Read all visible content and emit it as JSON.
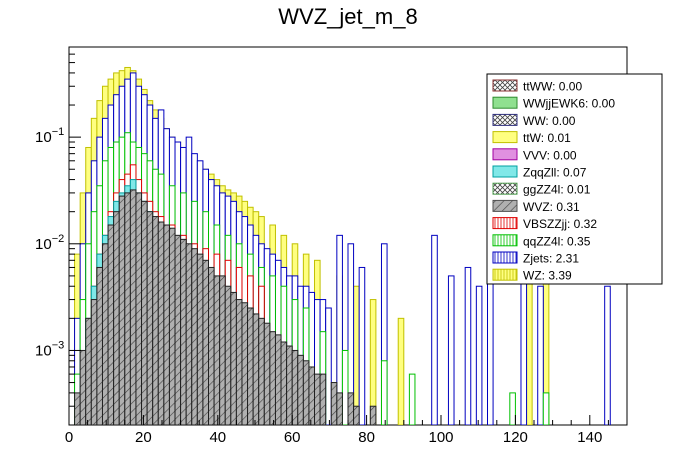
{
  "chart_data": {
    "type": "bar",
    "subtype": "stacked-histogram-log",
    "title": "WVZ_jet_m_8",
    "xlabel": "",
    "ylabel": "",
    "xlim": [
      0,
      150
    ],
    "ylim": [
      0.0002,
      0.7
    ],
    "yscale": "log",
    "bin_width": 1.5,
    "x_ticks": [
      0,
      20,
      40,
      60,
      80,
      100,
      120,
      140
    ],
    "x_tick_labels": [
      "0",
      "20",
      "40",
      "60",
      "80",
      "100",
      "120",
      "140"
    ],
    "y_ticks": [
      0.001,
      0.01,
      0.1
    ],
    "y_tick_labels": [
      {
        "base": "10",
        "exp": "−3"
      },
      {
        "base": "10",
        "exp": "−2"
      },
      {
        "base": "10",
        "exp": "−1"
      }
    ],
    "legend_position": "top-right",
    "legend": [
      {
        "label": "ttWW: 0.00",
        "fill": "#c98b8b",
        "stroke": "#8b3030",
        "pattern": "cross"
      },
      {
        "label": "WWjjEWK6: 0.00",
        "fill": "#90e090",
        "stroke": "#2e8b2e",
        "pattern": "solid"
      },
      {
        "label": "WW: 0.00",
        "fill": "#8080c0",
        "stroke": "#303080",
        "pattern": "cross"
      },
      {
        "label": "ttW: 0.01",
        "fill": "#ffff80",
        "stroke": "#c0c000",
        "pattern": "solid"
      },
      {
        "label": "VVV: 0.00",
        "fill": "#e090e0",
        "stroke": "#a000a0",
        "pattern": "solid"
      },
      {
        "label": "ZqqZll: 0.07",
        "fill": "#80e8e8",
        "stroke": "#00a0a0",
        "pattern": "solid"
      },
      {
        "label": "ggZZ4l: 0.01",
        "fill": "#b8e8a8",
        "stroke": "#50a050",
        "pattern": "cross"
      },
      {
        "label": "WVZ: 0.31",
        "fill": "#b0b0b0",
        "stroke": "#505050",
        "pattern": "diag"
      },
      {
        "label": "VBSZZjj: 0.32",
        "fill": "#ffffff",
        "stroke": "#e00000",
        "pattern": "vert"
      },
      {
        "label": "qqZZ4l: 0.35",
        "fill": "#ffffff",
        "stroke": "#00c000",
        "pattern": "vert"
      },
      {
        "label": "Zjets: 2.31",
        "fill": "#ffffff",
        "stroke": "#0000c0",
        "pattern": "vert"
      },
      {
        "label": "WZ: 3.39",
        "fill": "#ffff80",
        "stroke": "#c0c000",
        "pattern": "vert"
      }
    ],
    "series": [
      {
        "name": "WVZ",
        "fill": "#b0b0b0",
        "stroke": "#202020",
        "pattern": "diag",
        "x": [
          1.5,
          3,
          4.5,
          6,
          7.5,
          9,
          10.5,
          12,
          13.5,
          15,
          16.5,
          18,
          19.5,
          21,
          22.5,
          24,
          25.5,
          27,
          28.5,
          30,
          31.5,
          33,
          34.5,
          36,
          37.5,
          39,
          40.5,
          42,
          43.5,
          45,
          46.5,
          48,
          49.5,
          51,
          52.5,
          54,
          55.5,
          57,
          58.5,
          60,
          61.5,
          63,
          64.5,
          66,
          67.5,
          70.5,
          72,
          75,
          76.5,
          81
        ],
        "values": [
          0.0004,
          0.001,
          0.002,
          0.003,
          0.006,
          0.01,
          0.015,
          0.02,
          0.028,
          0.03,
          0.032,
          0.03,
          0.025,
          0.02,
          0.018,
          0.016,
          0.015,
          0.014,
          0.012,
          0.011,
          0.01,
          0.009,
          0.008,
          0.007,
          0.006,
          0.005,
          0.005,
          0.004,
          0.0035,
          0.003,
          0.0028,
          0.0025,
          0.0022,
          0.002,
          0.0018,
          0.0015,
          0.0014,
          0.0012,
          0.0011,
          0.001,
          0.0009,
          0.0008,
          0.0007,
          0.0006,
          0.0006,
          0.0005,
          0.0004,
          0.0004,
          0.0003,
          0.0003
        ]
      },
      {
        "name": "ZqqZll",
        "fill": "#80e8e8",
        "stroke": "#00a0a0",
        "pattern": "solid",
        "x": [
          3,
          4.5,
          6,
          7.5,
          9,
          10.5,
          12,
          13.5,
          15,
          16.5,
          18,
          19.5,
          21,
          22.5,
          24,
          25.5,
          27,
          30,
          33,
          36,
          40.5
        ],
        "values": [
          0.0008,
          0.002,
          0.004,
          0.008,
          0.012,
          0.018,
          0.025,
          0.03,
          0.035,
          0.04,
          0.03,
          0.025,
          0.02,
          0.015,
          0.012,
          0.01,
          0.008,
          0.006,
          0.005,
          0.004,
          0.003
        ]
      },
      {
        "name": "VBSZZjj",
        "fill": "#ffffff",
        "stroke": "#e00000",
        "pattern": "vert",
        "x": [
          6,
          7.5,
          9,
          10.5,
          12,
          13.5,
          15,
          16.5,
          18,
          19.5,
          21,
          22.5,
          24,
          27,
          30,
          33,
          36,
          39,
          42,
          45,
          48,
          51
        ],
        "values": [
          0.004,
          0.008,
          0.012,
          0.02,
          0.03,
          0.04,
          0.045,
          0.055,
          0.04,
          0.03,
          0.025,
          0.02,
          0.018,
          0.015,
          0.012,
          0.01,
          0.009,
          0.008,
          0.007,
          0.006,
          0.005,
          0.004
        ]
      },
      {
        "name": "qqZZ4l",
        "fill": "#ffffff",
        "stroke": "#00c000",
        "pattern": "vert",
        "x": [
          1.5,
          3,
          4.5,
          6,
          7.5,
          9,
          10.5,
          12,
          13.5,
          15,
          16.5,
          18,
          19.5,
          21,
          22.5,
          24,
          27,
          30,
          33,
          36,
          39,
          42,
          45,
          48,
          51,
          54,
          57,
          60,
          63,
          67.5,
          73.5,
          84,
          91.5,
          118.5,
          127.5
        ],
        "values": [
          0.0006,
          0.003,
          0.01,
          0.02,
          0.035,
          0.06,
          0.08,
          0.09,
          0.1,
          0.11,
          0.09,
          0.08,
          0.07,
          0.06,
          0.05,
          0.045,
          0.035,
          0.03,
          0.025,
          0.02,
          0.015,
          0.012,
          0.01,
          0.008,
          0.006,
          0.005,
          0.004,
          0.003,
          0.0025,
          0.0015,
          0.001,
          0.0008,
          0.0006,
          0.0004,
          0.0004
        ]
      },
      {
        "name": "Zjets",
        "fill": "#ffffff",
        "stroke": "#0000c0",
        "pattern": "vert",
        "x": [
          1.5,
          3,
          4.5,
          6,
          7.5,
          9,
          10.5,
          12,
          13.5,
          15,
          16.5,
          18,
          19.5,
          21,
          22.5,
          24,
          25.5,
          27,
          28.5,
          30,
          31.5,
          33,
          34.5,
          36,
          37.5,
          39,
          40.5,
          42,
          43.5,
          45,
          46.5,
          48,
          49.5,
          51,
          52.5,
          54,
          55.5,
          57,
          58.5,
          60,
          61.5,
          63,
          64.5,
          66,
          67.5,
          69,
          72,
          75,
          78,
          84,
          97.5,
          102,
          106.5,
          109.5,
          112.5,
          121.5,
          126,
          144
        ],
        "values": [
          0.002,
          0.01,
          0.03,
          0.06,
          0.1,
          0.15,
          0.2,
          0.25,
          0.3,
          0.35,
          0.4,
          0.3,
          0.25,
          0.2,
          0.15,
          0.18,
          0.12,
          0.1,
          0.09,
          0.08,
          0.1,
          0.07,
          0.06,
          0.05,
          0.04,
          0.035,
          0.03,
          0.028,
          0.025,
          0.02,
          0.018,
          0.015,
          0.012,
          0.01,
          0.009,
          0.008,
          0.007,
          0.006,
          0.005,
          0.005,
          0.004,
          0.004,
          0.0035,
          0.003,
          0.003,
          0.0025,
          0.012,
          0.01,
          0.006,
          0.01,
          0.012,
          0.005,
          0.006,
          0.004,
          0.006,
          0.005,
          0.004,
          0.004
        ]
      },
      {
        "name": "WZ",
        "fill": "#ffff80",
        "stroke": "#c0c000",
        "pattern": "vert",
        "x": [
          1.5,
          3,
          4.5,
          6,
          7.5,
          9,
          10.5,
          12,
          13.5,
          15,
          16.5,
          18,
          19.5,
          21,
          22.5,
          24,
          25.5,
          27,
          28.5,
          30,
          31.5,
          33,
          34.5,
          36,
          37.5,
          39,
          40.5,
          42,
          43.5,
          45,
          46.5,
          48,
          49.5,
          51,
          54,
          57,
          60,
          63,
          66,
          72,
          76.5,
          81,
          88.5,
          123,
          127.5
        ],
        "values": [
          0.008,
          0.03,
          0.08,
          0.15,
          0.22,
          0.3,
          0.35,
          0.4,
          0.42,
          0.45,
          0.42,
          0.35,
          0.28,
          0.22,
          0.18,
          0.15,
          0.12,
          0.1,
          0.09,
          0.08,
          0.07,
          0.06,
          0.055,
          0.05,
          0.045,
          0.04,
          0.035,
          0.032,
          0.03,
          0.028,
          0.025,
          0.022,
          0.02,
          0.018,
          0.015,
          0.012,
          0.01,
          0.008,
          0.007,
          0.005,
          0.004,
          0.003,
          0.002,
          0.01,
          0.01
        ]
      }
    ]
  }
}
